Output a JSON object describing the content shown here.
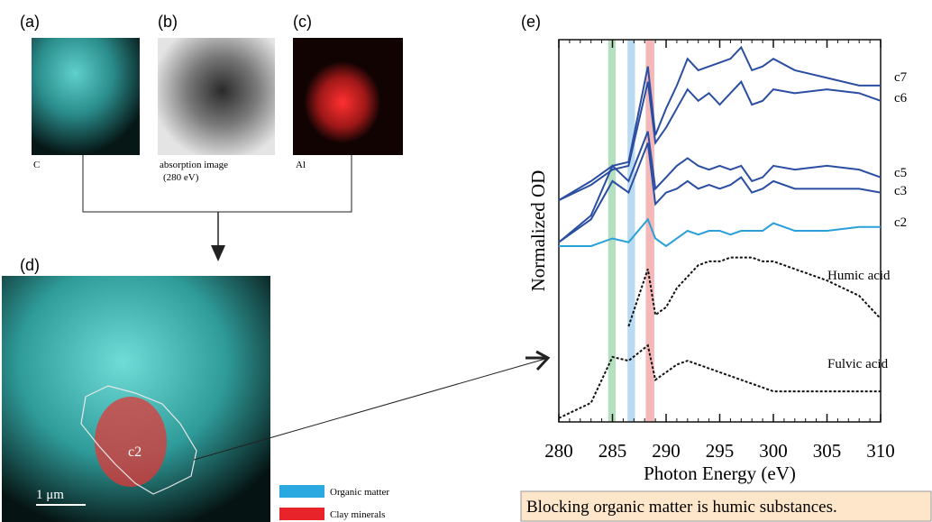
{
  "panels": {
    "a": {
      "label": "(a)",
      "caption": "C"
    },
    "b": {
      "label": "(b)",
      "caption": "absorption image",
      "caption2": "(280 eV)"
    },
    "c": {
      "label": "(c)",
      "caption": "Al"
    },
    "d": {
      "label": "(d)",
      "region": "c2",
      "scale": "1 μm"
    }
  },
  "legend": [
    {
      "name": "Organic matter",
      "color": "#29a9e0"
    },
    {
      "name": "Clay minerals",
      "color": "#e8232a"
    }
  ],
  "conclusion": "Blocking organic matter is humic substances.",
  "chart_data": {
    "type": "line",
    "panel_label": "(e)",
    "xlabel": "Photon Energy (eV)",
    "ylabel": "Normalized OD",
    "xlim": [
      280,
      310
    ],
    "xticks": [
      280,
      285,
      290,
      295,
      300,
      305,
      310
    ],
    "ylim": [
      0,
      1
    ],
    "bands": [
      {
        "range": [
          284.6,
          285.3
        ],
        "color": "#b5e0c0"
      },
      {
        "range": [
          286.4,
          287.1
        ],
        "color": "#b9daf0"
      },
      {
        "range": [
          288.1,
          288.9
        ],
        "color": "#f4b8b8"
      }
    ],
    "x": [
      280,
      283,
      285,
      286.5,
      288.3,
      289,
      290,
      291,
      292,
      293,
      294,
      295,
      296,
      297,
      298,
      299,
      300,
      302,
      305,
      308,
      310
    ],
    "series": [
      {
        "name": "c7",
        "color": "#2b4ea2",
        "values": [
          0.58,
          0.63,
          0.67,
          0.68,
          0.93,
          0.75,
          0.82,
          0.88,
          0.95,
          0.92,
          0.93,
          0.94,
          0.95,
          0.98,
          0.92,
          0.93,
          0.95,
          0.92,
          0.9,
          0.88,
          0.88
        ]
      },
      {
        "name": "c6",
        "color": "#2b4ea2",
        "values": [
          0.58,
          0.62,
          0.66,
          0.67,
          0.89,
          0.73,
          0.77,
          0.82,
          0.87,
          0.84,
          0.86,
          0.83,
          0.86,
          0.89,
          0.83,
          0.84,
          0.87,
          0.86,
          0.87,
          0.86,
          0.84
        ]
      },
      {
        "name": "c5",
        "color": "#2b4ea2",
        "values": [
          0.47,
          0.54,
          0.67,
          0.63,
          0.76,
          0.61,
          0.64,
          0.67,
          0.69,
          0.67,
          0.66,
          0.67,
          0.66,
          0.67,
          0.63,
          0.64,
          0.67,
          0.66,
          0.67,
          0.66,
          0.64
        ]
      },
      {
        "name": "c3",
        "color": "#2b4ea2",
        "values": [
          0.47,
          0.53,
          0.63,
          0.6,
          0.73,
          0.57,
          0.6,
          0.61,
          0.63,
          0.61,
          0.62,
          0.61,
          0.62,
          0.64,
          0.6,
          0.61,
          0.63,
          0.61,
          0.61,
          0.61,
          0.6
        ]
      },
      {
        "name": "c2",
        "color": "#29a0d8",
        "values": [
          0.46,
          0.46,
          0.48,
          0.47,
          0.53,
          0.48,
          0.46,
          0.48,
          0.5,
          0.49,
          0.5,
          0.5,
          0.49,
          0.5,
          0.5,
          0.5,
          0.52,
          0.5,
          0.5,
          0.51,
          0.51
        ]
      },
      {
        "name": "Humic acid",
        "color": "#111111",
        "dashed": true,
        "values": [
          null,
          null,
          null,
          0.25,
          0.4,
          0.28,
          0.3,
          0.35,
          0.38,
          0.41,
          0.42,
          0.42,
          0.43,
          0.43,
          0.43,
          0.42,
          0.42,
          0.4,
          0.37,
          0.33,
          0.27
        ]
      },
      {
        "name": "Fulvic acid",
        "color": "#111111",
        "dashed": true,
        "values": [
          0.01,
          0.05,
          0.17,
          0.16,
          0.2,
          0.11,
          0.13,
          0.15,
          0.16,
          0.15,
          0.14,
          0.13,
          0.12,
          0.11,
          0.1,
          0.09,
          0.08,
          0.08,
          0.08,
          0.08,
          0.08
        ]
      }
    ]
  }
}
